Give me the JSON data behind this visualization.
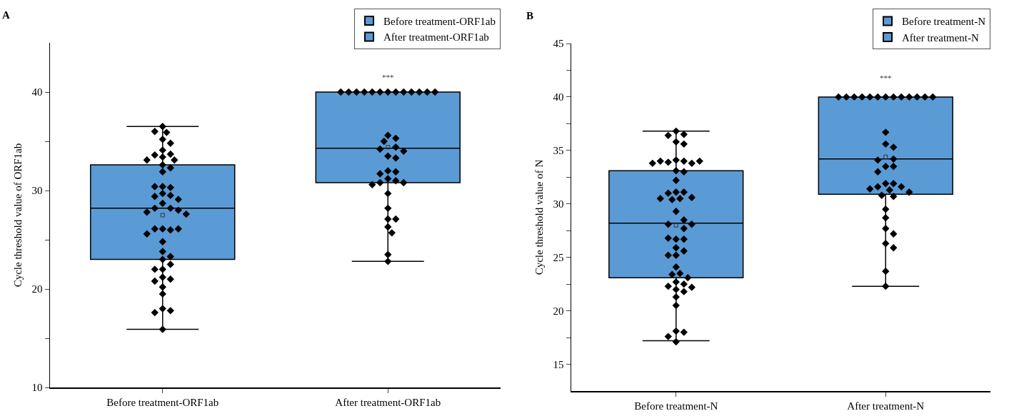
{
  "chart_data": [
    {
      "type": "box",
      "ylabel": "Cycle threshold value of ORF1ab",
      "annotations": [
        "A",
        "***"
      ],
      "categories": [
        "Before treatment-ORF1ab",
        "After treatment-ORF1ab"
      ],
      "ylim": [
        10,
        45
      ],
      "yticks": [
        10,
        {
          "value": 15,
          "label": null
        },
        20,
        {
          "value": 25,
          "label": null
        },
        30,
        {
          "value": 35,
          "label": null
        },
        40
      ],
      "legend": "top right",
      "marker": "diamond",
      "grid": false,
      "series": [
        {
          "name": "Before treatment-ORF1ab",
          "color": "#5b9bd5",
          "boxes": [
            {
              "low": 15.9,
              "q1": 23.0,
              "median": 28.2,
              "q3": 32.6,
              "high": 36.5,
              "mean": 27.5
            },
            null
          ]
        },
        {
          "name": "After treatment-ORF1ab",
          "color": "#5b9bd5",
          "boxes": [
            null,
            {
              "low": 22.8,
              "q1": 30.8,
              "median": 34.3,
              "q3": 40.0,
              "high": 40.0,
              "mean": 34.4
            }
          ]
        },
        {
          "type": "scatter",
          "color": "#000000",
          "x": [
            "Before treatment-ORF1ab",
            "Before treatment-ORF1ab",
            "Before treatment-ORF1ab",
            "Before treatment-ORF1ab",
            "Before treatment-ORF1ab",
            "Before treatment-ORF1ab",
            "Before treatment-ORF1ab",
            "Before treatment-ORF1ab",
            "Before treatment-ORF1ab",
            "Before treatment-ORF1ab",
            "Before treatment-ORF1ab",
            "Before treatment-ORF1ab",
            "Before treatment-ORF1ab",
            "Before treatment-ORF1ab",
            "Before treatment-ORF1ab",
            "Before treatment-ORF1ab",
            "Before treatment-ORF1ab",
            "Before treatment-ORF1ab",
            "Before treatment-ORF1ab",
            "Before treatment-ORF1ab",
            "Before treatment-ORF1ab",
            "Before treatment-ORF1ab",
            "Before treatment-ORF1ab",
            "Before treatment-ORF1ab",
            "Before treatment-ORF1ab",
            "Before treatment-ORF1ab",
            "Before treatment-ORF1ab",
            "Before treatment-ORF1ab",
            "Before treatment-ORF1ab",
            "Before treatment-ORF1ab",
            "Before treatment-ORF1ab",
            "Before treatment-ORF1ab",
            "Before treatment-ORF1ab",
            "Before treatment-ORF1ab",
            "Before treatment-ORF1ab",
            "Before treatment-ORF1ab",
            "Before treatment-ORF1ab",
            "Before treatment-ORF1ab",
            "Before treatment-ORF1ab",
            "Before treatment-ORF1ab",
            "Before treatment-ORF1ab",
            "Before treatment-ORF1ab",
            "Before treatment-ORF1ab",
            "Before treatment-ORF1ab",
            "Before treatment-ORF1ab",
            "Before treatment-ORF1ab",
            "Before treatment-ORF1ab",
            "Before treatment-ORF1ab"
          ],
          "values": [
            36.5,
            35.9,
            36.0,
            35.2,
            34.8,
            34.1,
            33.7,
            33.6,
            33.4,
            33.1,
            33.1,
            32.6,
            32.3,
            31.9,
            30.4,
            30.3,
            30.4,
            29.7,
            29.5,
            29.4,
            29.1,
            28.7,
            28.2,
            28.2,
            28.0,
            27.8,
            27.6,
            26.1,
            26.0,
            26.1,
            26.1,
            25.6,
            24.8,
            23.8,
            23.3,
            23.0,
            22.5,
            22.0,
            22.0,
            21.2,
            21.0,
            20.8,
            20.2,
            19.5,
            18.0,
            17.8,
            17.6,
            15.9
          ]
        },
        {
          "type": "scatter",
          "color": "#000000",
          "x": [
            "After treatment-ORF1ab",
            "After treatment-ORF1ab",
            "After treatment-ORF1ab",
            "After treatment-ORF1ab",
            "After treatment-ORF1ab",
            "After treatment-ORF1ab",
            "After treatment-ORF1ab",
            "After treatment-ORF1ab",
            "After treatment-ORF1ab",
            "After treatment-ORF1ab",
            "After treatment-ORF1ab",
            "After treatment-ORF1ab",
            "After treatment-ORF1ab",
            "After treatment-ORF1ab",
            "After treatment-ORF1ab",
            "After treatment-ORF1ab",
            "After treatment-ORF1ab",
            "After treatment-ORF1ab",
            "After treatment-ORF1ab",
            "After treatment-ORF1ab",
            "After treatment-ORF1ab",
            "After treatment-ORF1ab",
            "After treatment-ORF1ab",
            "After treatment-ORF1ab",
            "After treatment-ORF1ab",
            "After treatment-ORF1ab",
            "After treatment-ORF1ab",
            "After treatment-ORF1ab",
            "After treatment-ORF1ab",
            "After treatment-ORF1ab",
            "After treatment-ORF1ab",
            "After treatment-ORF1ab",
            "After treatment-ORF1ab",
            "After treatment-ORF1ab",
            "After treatment-ORF1ab",
            "After treatment-ORF1ab",
            "After treatment-ORF1ab"
          ],
          "values": [
            40,
            40,
            40,
            40,
            40,
            40,
            40,
            40,
            40,
            40,
            40,
            40,
            40,
            35.6,
            35.3,
            35.0,
            34.4,
            34.2,
            34.0,
            33.5,
            33.3,
            32.0,
            31.9,
            31.7,
            31.2,
            31.0,
            30.8,
            30.8,
            30.6,
            29.7,
            28.2,
            27.1,
            27.1,
            26.3,
            25.7,
            23.5,
            22.8
          ]
        }
      ]
    },
    {
      "type": "box",
      "ylabel": "Cycle threshold value of N",
      "annotations": [
        "B",
        "***"
      ],
      "categories": [
        "Before treatment-N",
        "After treatment-N"
      ],
      "ylim": [
        12.5,
        45
      ],
      "yticks": [
        15,
        {
          "value": 17.5,
          "label": null
        },
        20,
        {
          "value": 22.5,
          "label": null
        },
        25,
        {
          "value": 27.5,
          "label": null
        },
        30,
        {
          "value": 32.5,
          "label": null
        },
        35,
        {
          "value": 37.5,
          "label": null
        },
        40,
        {
          "value": 42.5,
          "label": null
        },
        45
      ],
      "legend": "top right",
      "marker": "diamond",
      "grid": false,
      "series": [
        {
          "name": "Before treatment-N",
          "color": "#5b9bd5",
          "boxes": [
            {
              "low": 17.2,
              "q1": 23.1,
              "median": 28.2,
              "q3": 33.1,
              "high": 36.8,
              "mean": 28.0
            },
            null
          ]
        },
        {
          "name": "After treatment-N",
          "color": "#5b9bd5",
          "boxes": [
            null,
            {
              "low": 22.3,
              "q1": 30.9,
              "median": 34.2,
              "q3": 40.0,
              "high": 40.0,
              "mean": 34.4
            }
          ]
        },
        {
          "type": "scatter",
          "color": "#000000",
          "x": [
            "Before treatment-N",
            "Before treatment-N",
            "Before treatment-N",
            "Before treatment-N",
            "Before treatment-N",
            "Before treatment-N",
            "Before treatment-N",
            "Before treatment-N",
            "Before treatment-N",
            "Before treatment-N",
            "Before treatment-N",
            "Before treatment-N",
            "Before treatment-N",
            "Before treatment-N",
            "Before treatment-N",
            "Before treatment-N",
            "Before treatment-N",
            "Before treatment-N",
            "Before treatment-N",
            "Before treatment-N",
            "Before treatment-N",
            "Before treatment-N",
            "Before treatment-N",
            "Before treatment-N",
            "Before treatment-N",
            "Before treatment-N",
            "Before treatment-N",
            "Before treatment-N",
            "Before treatment-N",
            "Before treatment-N",
            "Before treatment-N",
            "Before treatment-N",
            "Before treatment-N",
            "Before treatment-N",
            "Before treatment-N",
            "Before treatment-N",
            "Before treatment-N",
            "Before treatment-N",
            "Before treatment-N",
            "Before treatment-N",
            "Before treatment-N",
            "Before treatment-N",
            "Before treatment-N",
            "Before treatment-N",
            "Before treatment-N",
            "Before treatment-N",
            "Before treatment-N",
            "Before treatment-N",
            "Before treatment-N",
            "Before treatment-N"
          ],
          "values": [
            36.8,
            36.5,
            36.4,
            35.8,
            35.6,
            34.1,
            34.0,
            33.9,
            33.8,
            34.0,
            34.0,
            33.8,
            33.1,
            33.0,
            32.2,
            31.1,
            31.1,
            31.0,
            30.6,
            30.5,
            30.5,
            30.4,
            29.3,
            28.5,
            28.1,
            28.1,
            27.7,
            26.7,
            26.7,
            26.8,
            25.9,
            25.6,
            25.2,
            25.2,
            24.1,
            23.5,
            23.4,
            23.1,
            22.7,
            22.5,
            22.3,
            22.2,
            22.0,
            21.8,
            21.3,
            20.5,
            18.1,
            18.0,
            17.6,
            17.1
          ]
        },
        {
          "type": "scatter",
          "color": "#000000",
          "x": [
            "After treatment-N",
            "After treatment-N",
            "After treatment-N",
            "After treatment-N",
            "After treatment-N",
            "After treatment-N",
            "After treatment-N",
            "After treatment-N",
            "After treatment-N",
            "After treatment-N",
            "After treatment-N",
            "After treatment-N",
            "After treatment-N",
            "After treatment-N",
            "After treatment-N",
            "After treatment-N",
            "After treatment-N",
            "After treatment-N",
            "After treatment-N",
            "After treatment-N",
            "After treatment-N",
            "After treatment-N",
            "After treatment-N",
            "After treatment-N",
            "After treatment-N",
            "After treatment-N",
            "After treatment-N",
            "After treatment-N",
            "After treatment-N",
            "After treatment-N",
            "After treatment-N",
            "After treatment-N",
            "After treatment-N",
            "After treatment-N",
            "After treatment-N",
            "After treatment-N",
            "After treatment-N",
            "After treatment-N"
          ],
          "values": [
            40,
            40,
            40,
            40,
            40,
            40,
            40,
            40,
            40,
            40,
            40,
            40,
            40,
            36.7,
            35.6,
            35.3,
            34.2,
            34.1,
            33.5,
            33.5,
            33.0,
            31.9,
            31.9,
            31.6,
            31.6,
            31.4,
            31.3,
            31.1,
            30.8,
            30.7,
            29.5,
            28.7,
            27.7,
            27.2,
            26.3,
            25.9,
            23.7,
            22.3
          ]
        }
      ]
    }
  ]
}
